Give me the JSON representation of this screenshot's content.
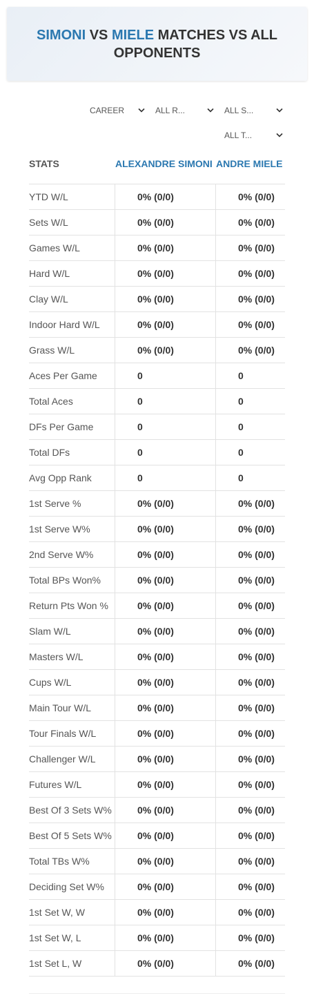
{
  "header": {
    "player1": "SIMONI",
    "vs": "VS",
    "player2": "MIELE",
    "rest": "MATCHES VS ALL OPPONENTS"
  },
  "filters": [
    "CAREER",
    "ALL R...",
    "ALL S...",
    "ALL T..."
  ],
  "table": {
    "columns": [
      "STATS",
      "ALEXANDRE SIMONI",
      "ANDRE MIELE"
    ],
    "rows": [
      [
        "YTD W/L",
        "0% (0/0)",
        "0% (0/0)"
      ],
      [
        "Sets W/L",
        "0% (0/0)",
        "0% (0/0)"
      ],
      [
        "Games W/L",
        "0% (0/0)",
        "0% (0/0)"
      ],
      [
        "Hard W/L",
        "0% (0/0)",
        "0% (0/0)"
      ],
      [
        "Clay W/L",
        "0% (0/0)",
        "0% (0/0)"
      ],
      [
        "Indoor Hard W/L",
        "0% (0/0)",
        "0% (0/0)"
      ],
      [
        "Grass W/L",
        "0% (0/0)",
        "0% (0/0)"
      ],
      [
        "Aces Per Game",
        "0",
        "0"
      ],
      [
        "Total Aces",
        "0",
        "0"
      ],
      [
        "DFs Per Game",
        "0",
        "0"
      ],
      [
        "Total DFs",
        "0",
        "0"
      ],
      [
        "Avg Opp Rank",
        "0",
        "0"
      ],
      [
        "1st Serve %",
        "0% (0/0)",
        "0% (0/0)"
      ],
      [
        "1st Serve W%",
        "0% (0/0)",
        "0% (0/0)"
      ],
      [
        "2nd Serve W%",
        "0% (0/0)",
        "0% (0/0)"
      ],
      [
        "Total BPs Won%",
        "0% (0/0)",
        "0% (0/0)"
      ],
      [
        "Return Pts Won %",
        "0% (0/0)",
        "0% (0/0)"
      ],
      [
        "Slam W/L",
        "0% (0/0)",
        "0% (0/0)"
      ],
      [
        "Masters W/L",
        "0% (0/0)",
        "0% (0/0)"
      ],
      [
        "Cups W/L",
        "0% (0/0)",
        "0% (0/0)"
      ],
      [
        "Main Tour W/L",
        "0% (0/0)",
        "0% (0/0)"
      ],
      [
        "Tour Finals W/L",
        "0% (0/0)",
        "0% (0/0)"
      ],
      [
        "Challenger W/L",
        "0% (0/0)",
        "0% (0/0)"
      ],
      [
        "Futures W/L",
        "0% (0/0)",
        "0% (0/0)"
      ],
      [
        "Best Of 3 Sets W%",
        "0% (0/0)",
        "0% (0/0)"
      ],
      [
        "Best Of 5 Sets W%",
        "0% (0/0)",
        "0% (0/0)"
      ],
      [
        "Total TBs W%",
        "0% (0/0)",
        "0% (0/0)"
      ],
      [
        "Deciding Set W%",
        "0% (0/0)",
        "0% (0/0)"
      ],
      [
        "1st Set W, W",
        "0% (0/0)",
        "0% (0/0)"
      ],
      [
        "1st Set W, L",
        "0% (0/0)",
        "0% (0/0)"
      ],
      [
        "1st Set L, W",
        "0% (0/0)",
        "0% (0/0)"
      ]
    ]
  }
}
